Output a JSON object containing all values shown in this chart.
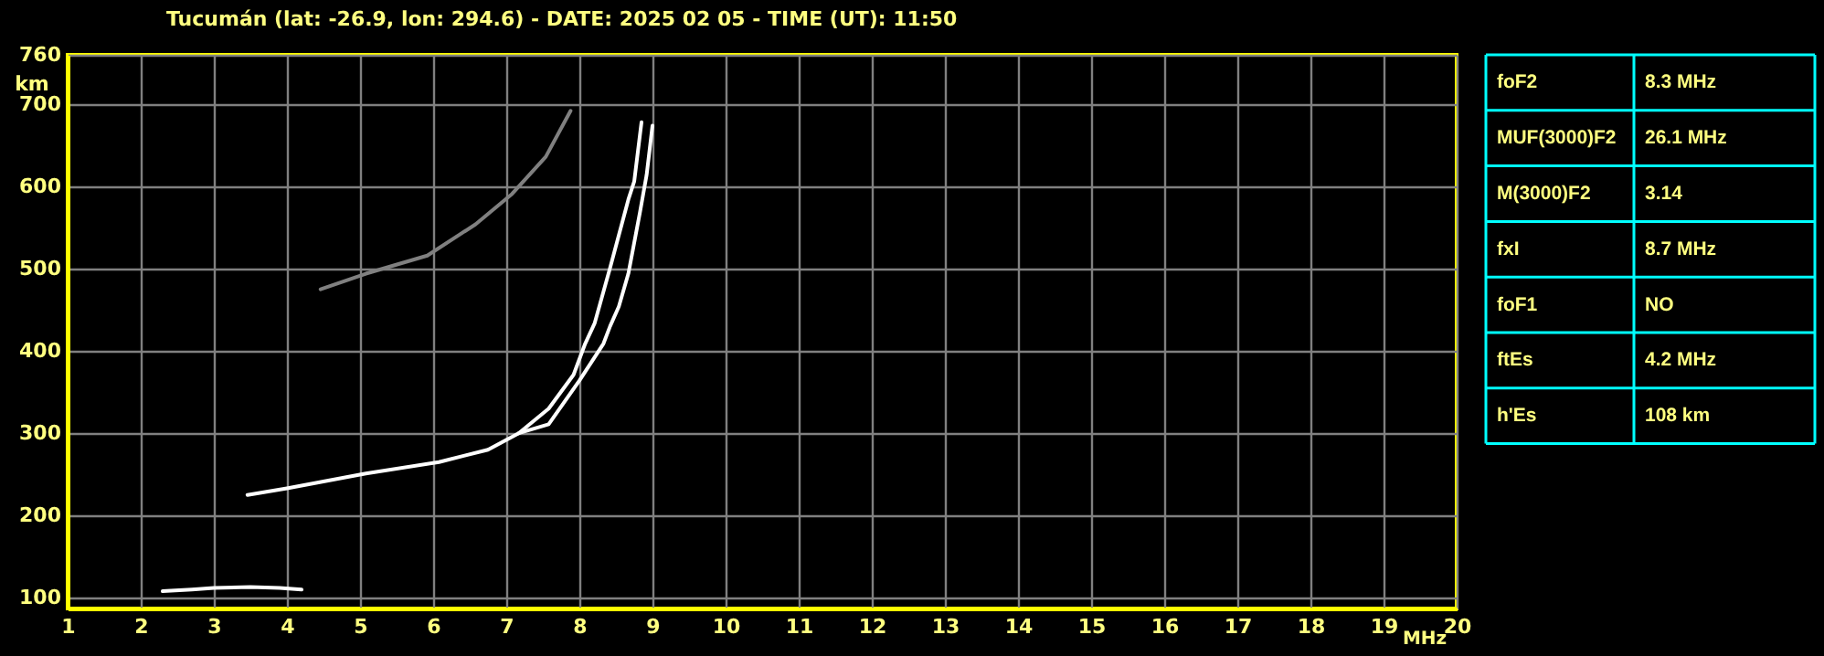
{
  "chart_data": [
    {
      "type": "line",
      "title": "Tucumán (lat: -26.9, lon: 294.6) - DATE: 2025 02 05 - TIME (UT): 11:50",
      "xlabel": "MHz",
      "ylabel": "km",
      "xlim": [
        1,
        20
      ],
      "xticks": [
        1,
        2,
        3,
        4,
        5,
        6,
        7,
        8,
        9,
        10,
        11,
        12,
        13,
        14,
        15,
        16,
        17,
        18,
        19,
        20
      ],
      "ylim": [
        87,
        760
      ],
      "yticks": [
        100,
        200,
        300,
        400,
        500,
        600,
        700,
        760
      ],
      "grid": true,
      "series": [
        {
          "color": "#ffffff",
          "x": [
            3.46,
            4.0,
            5.08,
            6.08,
            6.75,
            7.17,
            7.58,
            7.92,
            8.08,
            8.21,
            8.42,
            8.67,
            8.75,
            8.85
          ],
          "values": [
            225,
            233,
            251,
            265,
            280,
            300,
            330,
            371,
            409,
            434,
            501,
            584,
            606,
            678
          ]
        },
        {
          "color": "#ffffff",
          "x": [
            7.17,
            7.58,
            8.0,
            8.33,
            8.42,
            8.54,
            8.67,
            8.83,
            8.92,
            9.0
          ],
          "values": [
            300,
            311,
            364,
            409,
            430,
            454,
            494,
            569,
            614,
            674
          ]
        },
        {
          "color": "#ffffff",
          "x": [
            2.3,
            2.7,
            3.0,
            3.5,
            3.9,
            4.2
          ],
          "values": [
            108,
            110,
            112,
            113,
            112,
            110
          ]
        },
        {
          "color": "#808080",
          "x": [
            4.46,
            5.08,
            5.92,
            6.58,
            7.08,
            7.54,
            7.88
          ],
          "values": [
            475,
            494,
            516,
            554,
            591,
            636,
            692
          ]
        }
      ]
    },
    {
      "type": "other",
      "annotations": [
        "foF2",
        "8.3 MHz",
        "MUF(3000)F2",
        "26.1 MHz",
        "M(3000)F2",
        "3.14",
        "fxI",
        "8.7 MHz",
        "foF1",
        "NO",
        "ftEs",
        "4.2 MHz",
        "h'Es",
        "108 km"
      ]
    }
  ]
}
